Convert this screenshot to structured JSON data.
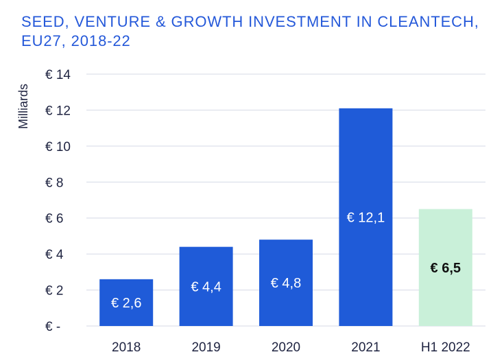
{
  "chart_data": {
    "type": "bar",
    "title": "SEED, VENTURE & GROWTH INVESTMENT IN CLEANTECH, EU27, 2018-22",
    "xlabel": "",
    "ylabel": "Milliards",
    "categories": [
      "2018",
      "2019",
      "2020",
      "2021",
      "H1 2022"
    ],
    "values": [
      2.6,
      4.4,
      4.8,
      12.1,
      6.5
    ],
    "data_labels": [
      "€ 2,6",
      "€ 4,4",
      "€ 4,8",
      "€ 12,1",
      "€ 6,5"
    ],
    "bar_colors": [
      "#1f5bd8",
      "#1f5bd8",
      "#1f5bd8",
      "#1f5bd8",
      "#c9f0d9"
    ],
    "label_colors": [
      "#ffffff",
      "#ffffff",
      "#ffffff",
      "#ffffff",
      "#111111"
    ],
    "ylim": [
      0,
      14
    ],
    "yticks": [
      0,
      2,
      4,
      6,
      8,
      10,
      12,
      14
    ],
    "ytick_labels": [
      "€ -",
      "€ 2",
      "€ 4",
      "€ 6",
      "€ 8",
      "€ 10",
      "€ 12",
      "€ 14"
    ],
    "grid": true,
    "grid_color": "#d4d9e6",
    "legend": "none"
  }
}
